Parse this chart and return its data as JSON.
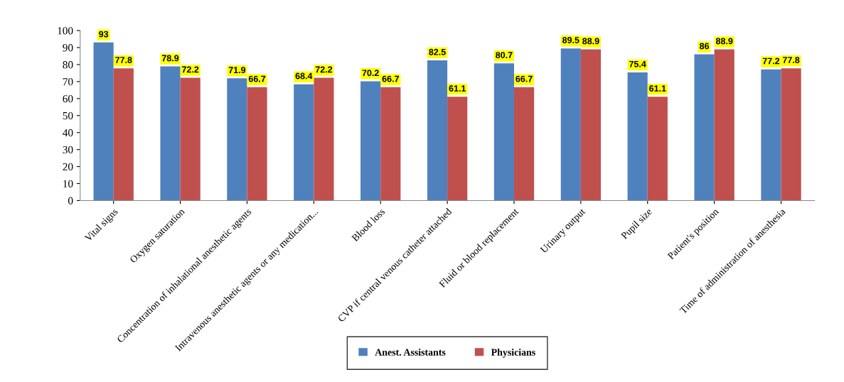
{
  "chart_data": {
    "type": "bar",
    "categories": [
      "Vital signs",
      "Oxygen saturation",
      "Concentration of inhalational anesthetic agents",
      "Intravenous anesthetic agents or any medication...",
      "Blood loss",
      "CVP if central venous catheter attached",
      "Fluid or blood replacement",
      "Urinary output",
      "Pupil size",
      "Patient's position",
      "Time of administration of anesthesia"
    ],
    "series": [
      {
        "name": "Anest. Assistants",
        "color": "#4f81bd",
        "values": [
          93,
          78.9,
          71.9,
          68.4,
          70.2,
          82.5,
          80.7,
          89.5,
          75.4,
          86,
          77.2
        ]
      },
      {
        "name": "Physicians",
        "color": "#c0504d",
        "values": [
          77.8,
          72.2,
          66.7,
          72.2,
          66.7,
          61.1,
          66.7,
          88.9,
          61.1,
          88.9,
          77.8
        ]
      }
    ],
    "ylim": [
      0,
      100
    ],
    "yticks": [
      0,
      10,
      20,
      30,
      40,
      50,
      60,
      70,
      80,
      90,
      100
    ],
    "data_labels": true,
    "legend": "bottom",
    "grid": false
  }
}
